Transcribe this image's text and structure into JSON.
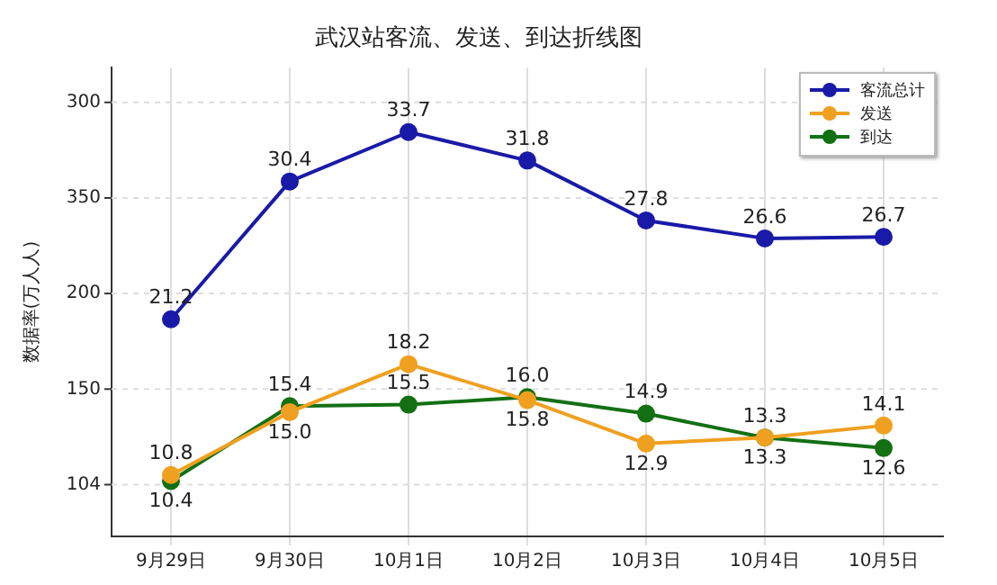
{
  "chart_data": {
    "type": "line",
    "title": "武汉站客流、发送、到达折线图",
    "ylabel": "数据率(万人人)",
    "annotations": [
      "300",
      "350",
      "200",
      "150",
      "104"
    ],
    "categories": [
      "9月29日",
      "9月30日",
      "10月1日",
      "10月2日",
      "10月3日",
      "10月4日",
      "10月5日"
    ],
    "series": [
      {
        "name": "客流总计",
        "color": "#1a1aa8",
        "values": [
          21.2,
          30.4,
          33.7,
          31.8,
          27.8,
          26.6,
          26.7
        ],
        "value_labels": [
          "21.2",
          "30.4",
          "33.7",
          "31.8",
          "27.8",
          "26.6",
          "26.7"
        ]
      },
      {
        "name": "发送",
        "color": "#f0a020",
        "values": [
          10.8,
          15.0,
          18.2,
          15.8,
          12.9,
          13.3,
          14.1
        ],
        "value_labels": [
          "10.8",
          "15.0",
          "18.2",
          "15.8",
          "12.9",
          "13.3",
          "14.1"
        ]
      },
      {
        "name": "到达",
        "color": "#137013",
        "values": [
          10.4,
          15.4,
          15.5,
          16.0,
          14.9,
          13.3,
          12.6
        ],
        "value_labels": [
          "10.4",
          "15.4",
          "15.5",
          "16.0",
          "14.9",
          "13.3",
          "12.6"
        ]
      }
    ],
    "ylim": [
      6.7,
      38
    ],
    "grid": true,
    "legend": "top right",
    "marker": "circle",
    "line_style": "solid"
  }
}
